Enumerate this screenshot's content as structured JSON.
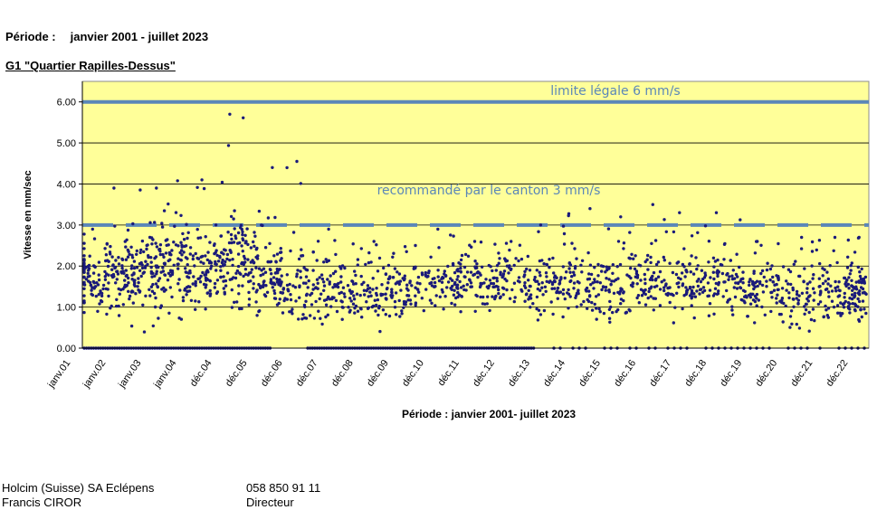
{
  "header": {
    "periode_label": "Période :",
    "periode_value": "janvier 2001 - juillet 2023",
    "station_title": "G1 \"Quartier Rapilles-Dessus\""
  },
  "chart_data": {
    "type": "scatter",
    "xlabel": "Période : janvier 2001- juillet 2023",
    "ylabel": "Vitesse en mm/sec",
    "ylim": [
      0,
      6.5
    ],
    "yticks": [
      "0.00",
      "1.00",
      "2.00",
      "3.00",
      "4.00",
      "5.00",
      "6.00"
    ],
    "x_ticks": [
      "janv.01",
      "janv.02",
      "janv.03",
      "janv.04",
      "déc.04",
      "déc.05",
      "déc.06",
      "déc.07",
      "déc.08",
      "déc.09",
      "déc.10",
      "déc.11",
      "déc.12",
      "déc.13",
      "déc.14",
      "déc.15",
      "déc.16",
      "déc.17",
      "déc.18",
      "déc.19",
      "déc.20",
      "déc.21",
      "déc.22"
    ],
    "plot_background": "#ffff99",
    "marker_color": "#1a1a7a",
    "grid": true,
    "thresholds": [
      {
        "label": "limite légale 6 mm/s",
        "value": 6.0,
        "style": "solid",
        "color": "#5b87b8"
      },
      {
        "label": "recommandé par le canton 3 mm/s",
        "value": 3.0,
        "style": "dashed",
        "color": "#5b87b8"
      }
    ],
    "series": [
      {
        "values_by_period": [
          {
            "period": "janv.01",
            "typical_range": [
              0.8,
              2.5
            ],
            "max": 2.9
          },
          {
            "period": "janv.02",
            "typical_range": [
              0.8,
              2.8
            ],
            "max": 3.9
          },
          {
            "period": "janv.03",
            "typical_range": [
              0.6,
              3.3
            ],
            "max": 3.9
          },
          {
            "period": "janv.04",
            "typical_range": [
              0.7,
              3.2
            ],
            "max": 4.1
          },
          {
            "period": "déc.04",
            "typical_range": [
              0.7,
              3.4
            ],
            "max": 5.7
          },
          {
            "period": "déc.05",
            "typical_range": [
              0.6,
              3.0
            ],
            "max": 4.4
          },
          {
            "period": "déc.06",
            "typical_range": [
              0.4,
              2.5
            ],
            "max": 4.55
          },
          {
            "period": "déc.07",
            "typical_range": [
              0.4,
              2.5
            ],
            "max": 2.9
          },
          {
            "period": "déc.08",
            "typical_range": [
              0.4,
              2.3
            ],
            "max": 2.6
          },
          {
            "period": "déc.09",
            "typical_range": [
              0.6,
              2.3
            ],
            "max": 2.5
          },
          {
            "period": "déc.10",
            "typical_range": [
              0.8,
              2.4
            ],
            "max": 2.9
          },
          {
            "period": "déc.11",
            "typical_range": [
              0.9,
              2.4
            ],
            "max": 2.6
          },
          {
            "period": "déc.12",
            "typical_range": [
              0.9,
              2.5
            ],
            "max": 2.6
          },
          {
            "period": "déc.13",
            "typical_range": [
              0.7,
              2.4
            ],
            "max": 3.0
          },
          {
            "period": "déc.14",
            "typical_range": [
              0.6,
              2.5
            ],
            "max": 3.4
          },
          {
            "period": "déc.15",
            "typical_range": [
              0.6,
              2.6
            ],
            "max": 3.2
          },
          {
            "period": "déc.16",
            "typical_range": [
              0.7,
              2.6
            ],
            "max": 3.5
          },
          {
            "period": "déc.17",
            "typical_range": [
              0.6,
              2.6
            ],
            "max": 3.3
          },
          {
            "period": "déc.18",
            "typical_range": [
              0.5,
              2.5
            ],
            "max": 3.3
          },
          {
            "period": "déc.19",
            "typical_range": [
              0.5,
              2.3
            ],
            "max": 2.6
          },
          {
            "period": "déc.20",
            "typical_range": [
              0.4,
              2.3
            ],
            "max": 2.7
          },
          {
            "period": "déc.21",
            "typical_range": [
              0.5,
              2.3
            ],
            "max": 2.7
          },
          {
            "period": "déc.22",
            "typical_range": [
              0.5,
              2.2
            ],
            "max": 2.7
          }
        ],
        "zero_readings": true,
        "approx_point_count": 2000
      }
    ]
  },
  "footer": {
    "company": "Holcim (Suisse) SA Eclépens",
    "phone": "058 850 91 11",
    "contact_name": "Francis CIROR",
    "contact_role": "Directeur"
  }
}
